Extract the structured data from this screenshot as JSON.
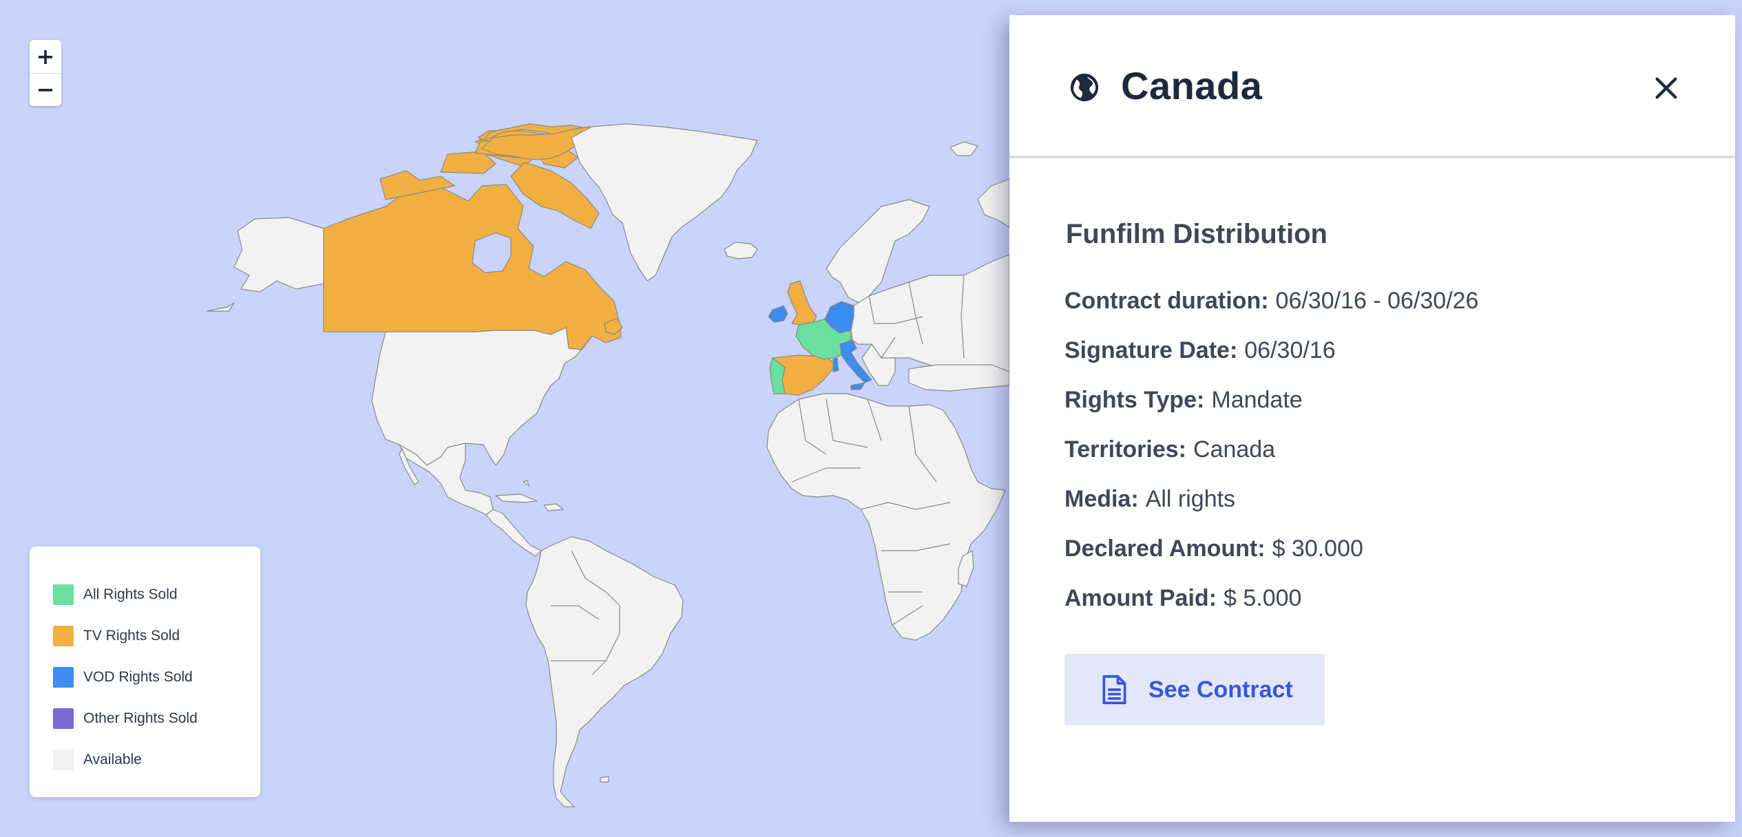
{
  "map": {
    "colors": {
      "all_rights": "#6ae0a0",
      "tv_rights": "#f2b042",
      "vod_rights": "#3d8cf0",
      "other_rights": "#7c68d4",
      "available": "#f2f2f2",
      "water": "#cad4fa"
    },
    "zoom_in_label": "+",
    "zoom_out_label": "−"
  },
  "legend": {
    "items": [
      {
        "label": "All Rights Sold",
        "color": "#6ae0a0"
      },
      {
        "label": "TV Rights Sold",
        "color": "#f2b042"
      },
      {
        "label": "VOD Rights Sold",
        "color": "#3d8cf0"
      },
      {
        "label": "Other Rights Sold",
        "color": "#7c68d4"
      },
      {
        "label": "Available",
        "color": "#f2f2f2"
      }
    ]
  },
  "panel": {
    "icon": "globe-icon",
    "title": "Canada",
    "close_icon": "close-icon",
    "company": "Funfilm Distribution",
    "details": [
      {
        "key": "Contract duration:",
        "value": "06/30/16 - 06/30/26"
      },
      {
        "key": "Signature Date:",
        "value": "06/30/16"
      },
      {
        "key": "Rights Type:",
        "value": "Mandate"
      },
      {
        "key": "Territories:",
        "value": "Canada"
      },
      {
        "key": "Media:",
        "value": "All rights"
      },
      {
        "key": "Declared Amount:",
        "value": "$ 30.000"
      },
      {
        "key": "Amount Paid:",
        "value": "$ 5.000"
      }
    ],
    "button_label": "See Contract",
    "button_icon": "document-icon"
  }
}
